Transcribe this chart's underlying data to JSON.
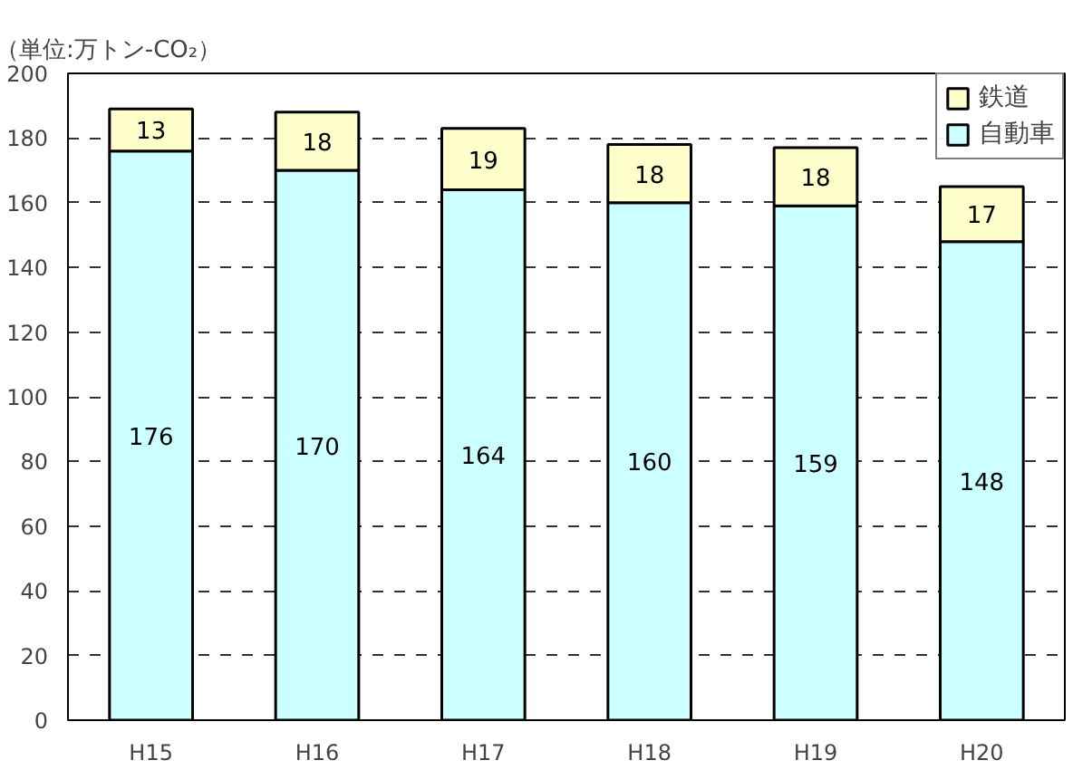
{
  "chart_data": {
    "type": "bar",
    "stacked": true,
    "title": "（単位:万トン-CO₂）",
    "categories": [
      "H15",
      "H16",
      "H17",
      "H18",
      "H19",
      "H20"
    ],
    "series": [
      {
        "name": "自動車",
        "color": "#ccffff",
        "values": [
          176,
          170,
          164,
          160,
          159,
          148
        ]
      },
      {
        "name": "鉄道",
        "color": "#ffffcc",
        "values": [
          13,
          18,
          19,
          18,
          18,
          17
        ]
      }
    ],
    "ylim": [
      0,
      200
    ],
    "yticks": [
      0,
      20,
      40,
      60,
      80,
      100,
      120,
      140,
      160,
      180,
      200
    ],
    "grid": "y",
    "legend": "top right",
    "data_labels": true
  }
}
